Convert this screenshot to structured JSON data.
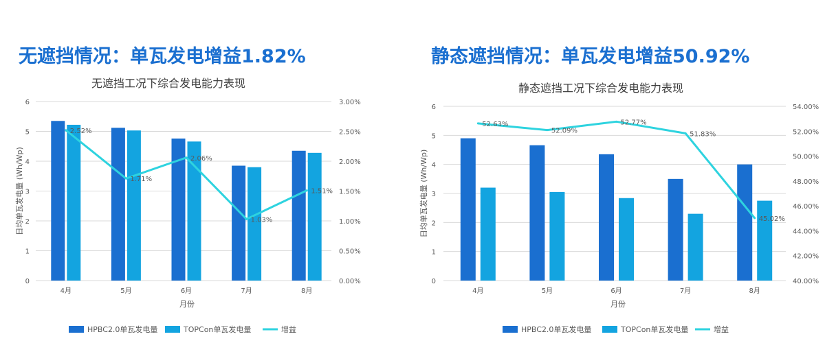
{
  "panels": [
    {
      "headline": "无遮挡情况：单瓦发电增益1.82%",
      "subtitle": "无遮挡工况下综合发电能力表现"
    },
    {
      "headline": "静态遮挡情况：单瓦发电增益50.92%",
      "subtitle": "静态遮挡工况下综合发电能力表现"
    }
  ],
  "chart_data": [
    {
      "type": "bar",
      "title": "无遮挡工况下综合发电能力表现",
      "xlabel": "月份",
      "ylabel": "日均单瓦发电量 (Wh/Wp)",
      "categories": [
        "4月",
        "5月",
        "6月",
        "7月",
        "8月"
      ],
      "ylim": [
        0,
        6
      ],
      "y_ticks": [
        "0",
        "1",
        "2",
        "3",
        "4",
        "5",
        "6"
      ],
      "y2lim": [
        0,
        3
      ],
      "y2_ticks": [
        "0.00%",
        "0.50%",
        "1.00%",
        "1.50%",
        "2.00%",
        "2.50%",
        "3.00%"
      ],
      "series": [
        {
          "name": "HPBC2.0单瓦发电量",
          "type": "bar",
          "color": "#1a6fd0",
          "values": [
            5.35,
            5.12,
            4.76,
            3.85,
            4.35
          ]
        },
        {
          "name": "TOPCon单瓦发电量",
          "type": "bar",
          "color": "#13a4e0",
          "values": [
            5.22,
            5.03,
            4.66,
            3.8,
            4.28
          ]
        },
        {
          "name": "增益",
          "type": "line",
          "axis": "secondary",
          "color": "#2ed3df",
          "values": [
            2.52,
            1.71,
            2.06,
            1.03,
            1.51
          ]
        }
      ],
      "data_labels": [
        "2.52%",
        "1.71%",
        "2.06%",
        "1.03%",
        "1.51%"
      ],
      "legend": "bottom"
    },
    {
      "type": "bar",
      "title": "静态遮挡工况下综合发电能力表现",
      "xlabel": "月份",
      "ylabel": "日均单瓦发电量 (Wh/Wp)",
      "categories": [
        "4月",
        "5月",
        "6月",
        "7月",
        "8月"
      ],
      "ylim": [
        0,
        6
      ],
      "y_ticks": [
        "0",
        "1",
        "2",
        "3",
        "4",
        "5",
        "6"
      ],
      "y2lim": [
        40,
        54
      ],
      "y2_ticks": [
        "40.00%",
        "42.00%",
        "44.00%",
        "46.00%",
        "48.00%",
        "50.00%",
        "52.00%",
        "54.00%"
      ],
      "series": [
        {
          "name": "HPBC2.0单瓦发电量",
          "type": "bar",
          "color": "#1a6fd0",
          "values": [
            4.9,
            4.66,
            4.35,
            3.5,
            4.0
          ]
        },
        {
          "name": "TOPCon单瓦发电量",
          "type": "bar",
          "color": "#13a4e0",
          "values": [
            3.2,
            3.05,
            2.84,
            2.3,
            2.75
          ]
        },
        {
          "name": "增益",
          "type": "line",
          "axis": "secondary",
          "color": "#2ed3df",
          "values": [
            52.63,
            52.09,
            52.77,
            51.83,
            45.02
          ]
        }
      ],
      "data_labels": [
        "52.63%",
        "52.09%",
        "52.77%",
        "51.83%",
        "45.02%"
      ],
      "legend": "bottom"
    }
  ]
}
